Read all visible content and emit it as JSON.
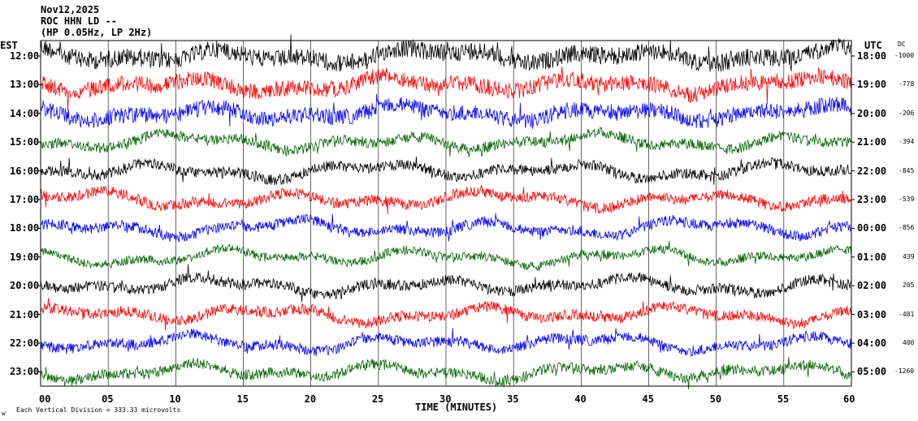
{
  "header": {
    "date": "Nov12,2025",
    "station": "ROC HHN LD --",
    "filter": "(HP 0.05Hz, LP 2Hz)"
  },
  "left_axis_title": "EST",
  "right_axis_title": "UTC",
  "dc_title": "DC",
  "footer_left": "Each Vertical Division = 333.33 microvolts",
  "footer_mark": "w",
  "chart_data": {
    "type": "line",
    "title": "Nov12,2025",
    "xlabel": "TIME (MINUTES)",
    "xlim": [
      0,
      60
    ],
    "x_ticks": [
      "00",
      "05",
      "10",
      "15",
      "20",
      "25",
      "30",
      "35",
      "40",
      "45",
      "50",
      "55",
      "60"
    ],
    "rows": [
      {
        "est": "12:00",
        "utc": "18:00",
        "dc": "-1000",
        "color": "#000000",
        "noise": 1.0
      },
      {
        "est": "13:00",
        "utc": "19:00",
        "dc": "-778",
        "color": "#ff0000",
        "noise": 0.9
      },
      {
        "est": "14:00",
        "utc": "20:00",
        "dc": "-206",
        "color": "#0000ff",
        "noise": 0.9
      },
      {
        "est": "15:00",
        "utc": "21:00",
        "dc": "-394",
        "color": "#006400",
        "noise": 0.6
      },
      {
        "est": "16:00",
        "utc": "22:00",
        "dc": "-845",
        "color": "#000000",
        "noise": 0.6
      },
      {
        "est": "17:00",
        "utc": "23:00",
        "dc": "-539",
        "color": "#ff0000",
        "noise": 0.6
      },
      {
        "est": "18:00",
        "utc": "00:00",
        "dc": "-856",
        "color": "#0000ff",
        "noise": 0.6
      },
      {
        "est": "19:00",
        "utc": "01:00",
        "dc": "439",
        "color": "#006400",
        "noise": 0.5
      },
      {
        "est": "20:00",
        "utc": "02:00",
        "dc": "205",
        "color": "#000000",
        "noise": 0.6
      },
      {
        "est": "21:00",
        "utc": "03:00",
        "dc": "-481",
        "color": "#ff0000",
        "noise": 0.6
      },
      {
        "est": "22:00",
        "utc": "04:00",
        "dc": "400",
        "color": "#0000ff",
        "noise": 0.6
      },
      {
        "est": "23:00",
        "utc": "05:00",
        "dc": "-1260",
        "color": "#006400",
        "noise": 0.6
      }
    ]
  }
}
